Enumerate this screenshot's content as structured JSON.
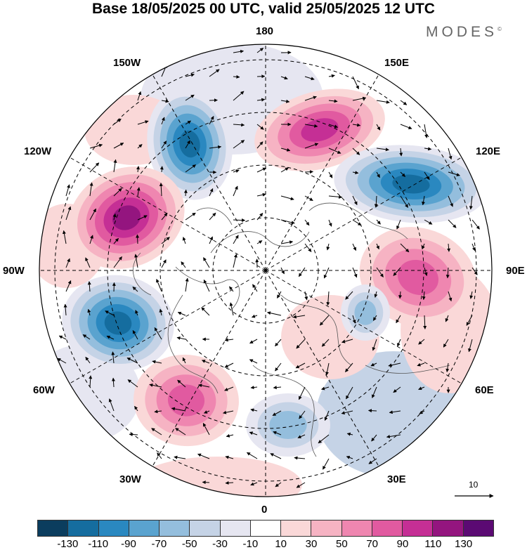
{
  "title": "Base 18/05/2025 00 UTC, valid 25/05/2025 12 UTC",
  "brand": "MODES",
  "brand_mark": "©",
  "longitude_labels": {
    "lon_180": "180",
    "lon_150W": "150W",
    "lon_150E": "150E",
    "lon_120W": "120W",
    "lon_120E": "120E",
    "lon_90W": "90W",
    "lon_90E": "90E",
    "lon_60W": "60W",
    "lon_60E": "60E",
    "lon_30W": "30W",
    "lon_30E": "30E",
    "lon_0": "0"
  },
  "reference_vector_label": "10",
  "colorbar": {
    "colors": [
      "#0b3d5e",
      "#156d9f",
      "#2a88c0",
      "#5aa3cf",
      "#94bedd",
      "#c5d3e6",
      "#e6e6f1",
      "#ffffff",
      "#fad8d8",
      "#f6b3c3",
      "#ef86b0",
      "#e15aa0",
      "#c52f95",
      "#94157f",
      "#5b0a73"
    ],
    "labels": [
      "-130",
      "-110",
      "-90",
      "-70",
      "-50",
      "-30",
      "-10",
      "10",
      "30",
      "50",
      "70",
      "90",
      "110",
      "130"
    ]
  },
  "anomaly_centers": [
    {
      "sign": "negative",
      "value": -110,
      "color": "#156d9f"
    },
    {
      "sign": "positive",
      "value": 110,
      "color": "#c52f95"
    },
    {
      "sign": "negative",
      "value": -110,
      "color": "#156d9f"
    },
    {
      "sign": "positive",
      "value": 110,
      "color": "#94157f"
    },
    {
      "sign": "positive",
      "value": 90,
      "color": "#e15aa0"
    },
    {
      "sign": "negative",
      "value": -110,
      "color": "#156d9f"
    },
    {
      "sign": "positive",
      "value": 90,
      "color": "#e15aa0"
    },
    {
      "sign": "negative",
      "value": -50,
      "color": "#94bedd"
    },
    {
      "sign": "negative",
      "value": -50,
      "color": "#94bedd"
    }
  ]
}
